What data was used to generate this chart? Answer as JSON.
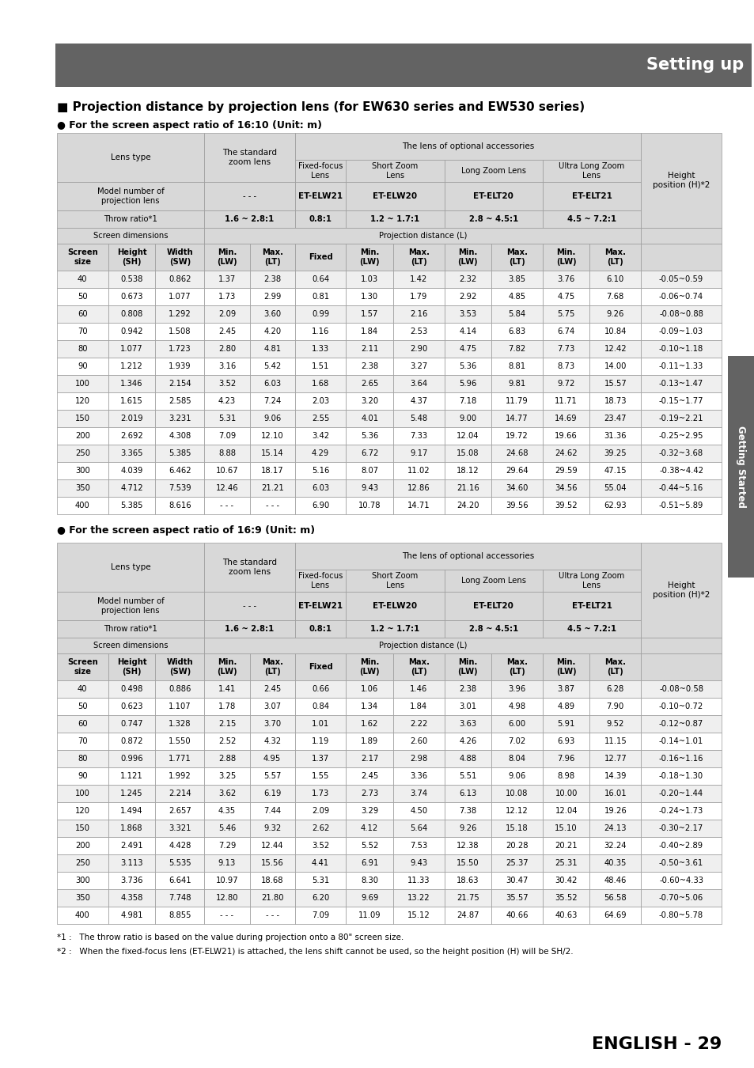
{
  "header_bg": "#636363",
  "header_text_color": "#ffffff",
  "header_title": "Setting up",
  "main_title": "■ Projection distance by projection lens (for EW630 series and EW530 series)",
  "subtitle1": "● For the screen aspect ratio of 16:10 (Unit: m)",
  "subtitle2": "● For the screen aspect ratio of 16:9 (Unit: m)",
  "table1_data": [
    [
      "40",
      "0.538",
      "0.862",
      "1.37",
      "2.38",
      "0.64",
      "1.03",
      "1.42",
      "2.32",
      "3.85",
      "3.76",
      "6.10",
      "-0.05~0.59"
    ],
    [
      "50",
      "0.673",
      "1.077",
      "1.73",
      "2.99",
      "0.81",
      "1.30",
      "1.79",
      "2.92",
      "4.85",
      "4.75",
      "7.68",
      "-0.06~0.74"
    ],
    [
      "60",
      "0.808",
      "1.292",
      "2.09",
      "3.60",
      "0.99",
      "1.57",
      "2.16",
      "3.53",
      "5.84",
      "5.75",
      "9.26",
      "-0.08~0.88"
    ],
    [
      "70",
      "0.942",
      "1.508",
      "2.45",
      "4.20",
      "1.16",
      "1.84",
      "2.53",
      "4.14",
      "6.83",
      "6.74",
      "10.84",
      "-0.09~1.03"
    ],
    [
      "80",
      "1.077",
      "1.723",
      "2.80",
      "4.81",
      "1.33",
      "2.11",
      "2.90",
      "4.75",
      "7.82",
      "7.73",
      "12.42",
      "-0.10~1.18"
    ],
    [
      "90",
      "1.212",
      "1.939",
      "3.16",
      "5.42",
      "1.51",
      "2.38",
      "3.27",
      "5.36",
      "8.81",
      "8.73",
      "14.00",
      "-0.11~1.33"
    ],
    [
      "100",
      "1.346",
      "2.154",
      "3.52",
      "6.03",
      "1.68",
      "2.65",
      "3.64",
      "5.96",
      "9.81",
      "9.72",
      "15.57",
      "-0.13~1.47"
    ],
    [
      "120",
      "1.615",
      "2.585",
      "4.23",
      "7.24",
      "2.03",
      "3.20",
      "4.37",
      "7.18",
      "11.79",
      "11.71",
      "18.73",
      "-0.15~1.77"
    ],
    [
      "150",
      "2.019",
      "3.231",
      "5.31",
      "9.06",
      "2.55",
      "4.01",
      "5.48",
      "9.00",
      "14.77",
      "14.69",
      "23.47",
      "-0.19~2.21"
    ],
    [
      "200",
      "2.692",
      "4.308",
      "7.09",
      "12.10",
      "3.42",
      "5.36",
      "7.33",
      "12.04",
      "19.72",
      "19.66",
      "31.36",
      "-0.25~2.95"
    ],
    [
      "250",
      "3.365",
      "5.385",
      "8.88",
      "15.14",
      "4.29",
      "6.72",
      "9.17",
      "15.08",
      "24.68",
      "24.62",
      "39.25",
      "-0.32~3.68"
    ],
    [
      "300",
      "4.039",
      "6.462",
      "10.67",
      "18.17",
      "5.16",
      "8.07",
      "11.02",
      "18.12",
      "29.64",
      "29.59",
      "47.15",
      "-0.38~4.42"
    ],
    [
      "350",
      "4.712",
      "7.539",
      "12.46",
      "21.21",
      "6.03",
      "9.43",
      "12.86",
      "21.16",
      "34.60",
      "34.56",
      "55.04",
      "-0.44~5.16"
    ],
    [
      "400",
      "5.385",
      "8.616",
      "- - -",
      "- - -",
      "6.90",
      "10.78",
      "14.71",
      "24.20",
      "39.56",
      "39.52",
      "62.93",
      "-0.51~5.89"
    ]
  ],
  "table2_data": [
    [
      "40",
      "0.498",
      "0.886",
      "1.41",
      "2.45",
      "0.66",
      "1.06",
      "1.46",
      "2.38",
      "3.96",
      "3.87",
      "6.28",
      "-0.08~0.58"
    ],
    [
      "50",
      "0.623",
      "1.107",
      "1.78",
      "3.07",
      "0.84",
      "1.34",
      "1.84",
      "3.01",
      "4.98",
      "4.89",
      "7.90",
      "-0.10~0.72"
    ],
    [
      "60",
      "0.747",
      "1.328",
      "2.15",
      "3.70",
      "1.01",
      "1.62",
      "2.22",
      "3.63",
      "6.00",
      "5.91",
      "9.52",
      "-0.12~0.87"
    ],
    [
      "70",
      "0.872",
      "1.550",
      "2.52",
      "4.32",
      "1.19",
      "1.89",
      "2.60",
      "4.26",
      "7.02",
      "6.93",
      "11.15",
      "-0.14~1.01"
    ],
    [
      "80",
      "0.996",
      "1.771",
      "2.88",
      "4.95",
      "1.37",
      "2.17",
      "2.98",
      "4.88",
      "8.04",
      "7.96",
      "12.77",
      "-0.16~1.16"
    ],
    [
      "90",
      "1.121",
      "1.992",
      "3.25",
      "5.57",
      "1.55",
      "2.45",
      "3.36",
      "5.51",
      "9.06",
      "8.98",
      "14.39",
      "-0.18~1.30"
    ],
    [
      "100",
      "1.245",
      "2.214",
      "3.62",
      "6.19",
      "1.73",
      "2.73",
      "3.74",
      "6.13",
      "10.08",
      "10.00",
      "16.01",
      "-0.20~1.44"
    ],
    [
      "120",
      "1.494",
      "2.657",
      "4.35",
      "7.44",
      "2.09",
      "3.29",
      "4.50",
      "7.38",
      "12.12",
      "12.04",
      "19.26",
      "-0.24~1.73"
    ],
    [
      "150",
      "1.868",
      "3.321",
      "5.46",
      "9.32",
      "2.62",
      "4.12",
      "5.64",
      "9.26",
      "15.18",
      "15.10",
      "24.13",
      "-0.30~2.17"
    ],
    [
      "200",
      "2.491",
      "4.428",
      "7.29",
      "12.44",
      "3.52",
      "5.52",
      "7.53",
      "12.38",
      "20.28",
      "20.21",
      "32.24",
      "-0.40~2.89"
    ],
    [
      "250",
      "3.113",
      "5.535",
      "9.13",
      "15.56",
      "4.41",
      "6.91",
      "9.43",
      "15.50",
      "25.37",
      "25.31",
      "40.35",
      "-0.50~3.61"
    ],
    [
      "300",
      "3.736",
      "6.641",
      "10.97",
      "18.68",
      "5.31",
      "8.30",
      "11.33",
      "18.63",
      "30.47",
      "30.42",
      "48.46",
      "-0.60~4.33"
    ],
    [
      "350",
      "4.358",
      "7.748",
      "12.80",
      "21.80",
      "6.20",
      "9.69",
      "13.22",
      "21.75",
      "35.57",
      "35.52",
      "56.58",
      "-0.70~5.06"
    ],
    [
      "400",
      "4.981",
      "8.855",
      "- - -",
      "- - -",
      "7.09",
      "11.09",
      "15.12",
      "24.87",
      "40.66",
      "40.63",
      "64.69",
      "-0.80~5.78"
    ]
  ],
  "footnote1": "*1 :   The throw ratio is based on the value during projection onto a 80\" screen size.",
  "footnote2": "*2 :   When the fixed-focus lens (ET-ELW21) is attached, the lens shift cannot be used, so the height position (H) will be SH/2.",
  "page_label": "ENGLISH - 29",
  "side_label": "Getting Started",
  "header_bg_color": "#636363",
  "cell_header_bg": "#d8d8d8",
  "cell_even_bg": "#efefef",
  "cell_odd_bg": "#ffffff",
  "border_color": "#999999"
}
